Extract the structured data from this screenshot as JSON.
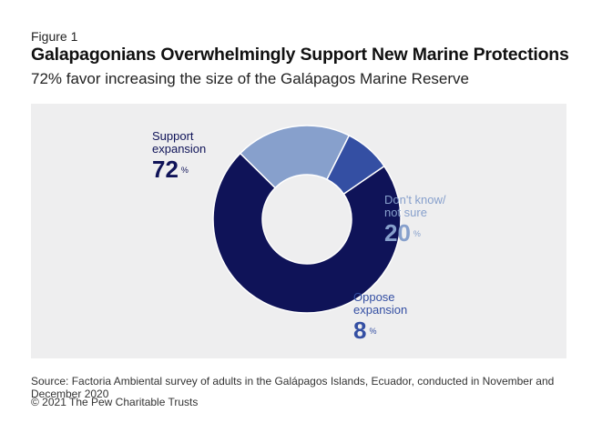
{
  "figure_label": "Figure 1",
  "title": "Galapagonians Overwhelmingly Support New Marine Protections",
  "subtitle": "72% favor increasing the size of the Galápagos Marine Reserve",
  "chart_data": {
    "type": "pie",
    "donut": true,
    "slices": [
      {
        "label_line1": "Support",
        "label_line2": "expansion",
        "value": 72,
        "unit": "%",
        "color": "#0f1358"
      },
      {
        "label_line1": "Don't know/",
        "label_line2": "not sure",
        "value": 20,
        "unit": "%",
        "color": "#87a0cc"
      },
      {
        "label_line1": "Oppose",
        "label_line2": "expansion",
        "value": 8,
        "unit": "%",
        "color": "#344fa3"
      }
    ]
  },
  "source": "Source: Factoria Ambiental survey of adults in the Galápagos Islands, Ecuador, conducted in November and December 2020",
  "copyright": "© 2021 The Pew Charitable Trusts"
}
